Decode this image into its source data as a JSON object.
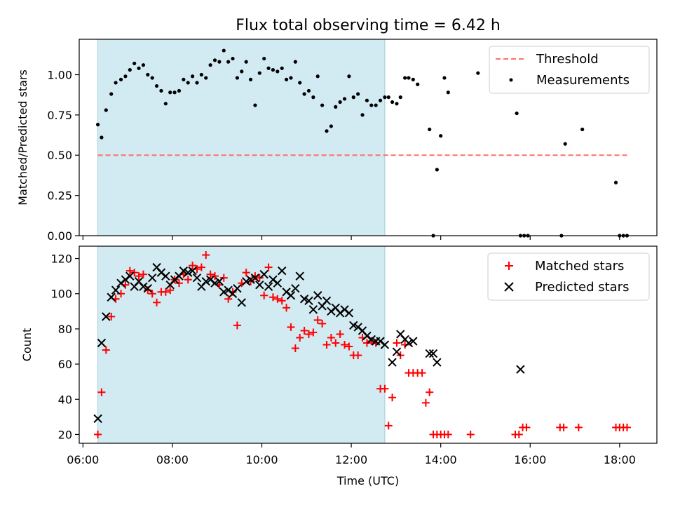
{
  "title": "Flux total observing time = 6.42 h",
  "colors": {
    "threshold": "#ff6f6f",
    "measurement": "#000000",
    "matched": "#ff0000",
    "predicted": "#000000",
    "shade": "#add8e6"
  },
  "chart_data": [
    {
      "type": "scatter",
      "ylabel": "Matched/Predicted stars",
      "ylim": [
        0,
        1.22
      ],
      "yticks": [
        0.0,
        0.25,
        0.5,
        0.75,
        1.0
      ],
      "ytick_labels": [
        "0.00",
        "0.25",
        "0.50",
        "0.75",
        "1.00"
      ],
      "xlim": [
        "05:55",
        "18:50"
      ],
      "xticks": [
        "06:00",
        "08:00",
        "10:00",
        "12:00",
        "14:00",
        "16:00",
        "18:00"
      ],
      "grid": false,
      "legend": "upper-right",
      "shaded_interval": [
        "06:20",
        "12:45"
      ],
      "threshold": {
        "name": "Threshold",
        "y": 0.5,
        "x_range": [
          "06:20",
          "18:10"
        ]
      },
      "series": [
        {
          "name": "Measurements",
          "x": [
            "06:20",
            "06:25",
            "06:31",
            "06:38",
            "06:44",
            "06:51",
            "06:57",
            "07:03",
            "07:09",
            "07:15",
            "07:21",
            "07:27",
            "07:33",
            "07:39",
            "07:45",
            "07:51",
            "07:57",
            "08:03",
            "08:09",
            "08:15",
            "08:21",
            "08:27",
            "08:33",
            "08:39",
            "08:45",
            "08:51",
            "08:57",
            "09:03",
            "09:09",
            "09:15",
            "09:21",
            "09:27",
            "09:33",
            "09:39",
            "09:45",
            "09:51",
            "09:57",
            "10:03",
            "10:09",
            "10:15",
            "10:21",
            "10:27",
            "10:33",
            "10:39",
            "10:45",
            "10:51",
            "10:57",
            "11:03",
            "11:09",
            "11:15",
            "11:21",
            "11:27",
            "11:33",
            "11:39",
            "11:45",
            "11:51",
            "11:57",
            "12:03",
            "12:09",
            "12:15",
            "12:21",
            "12:27",
            "12:33",
            "12:39",
            "12:45",
            "12:50",
            "12:55",
            "13:01",
            "13:06",
            "13:12",
            "13:17",
            "13:23",
            "13:29",
            "13:45",
            "13:50",
            "13:55",
            "14:00",
            "14:05",
            "14:10",
            "14:50",
            "15:42",
            "15:47",
            "15:52",
            "15:57",
            "16:42",
            "16:47",
            "17:10",
            "17:55",
            "18:00",
            "18:05",
            "18:10"
          ],
          "y": [
            0.69,
            0.61,
            0.78,
            0.88,
            0.95,
            0.97,
            0.99,
            1.03,
            1.07,
            1.04,
            1.06,
            1.0,
            0.98,
            0.93,
            0.9,
            0.82,
            0.89,
            0.89,
            0.9,
            0.97,
            0.95,
            0.99,
            0.95,
            1.0,
            0.98,
            1.06,
            1.09,
            1.08,
            1.15,
            1.08,
            1.1,
            0.98,
            1.02,
            1.08,
            0.97,
            0.81,
            1.01,
            1.1,
            1.04,
            1.03,
            1.02,
            1.04,
            0.97,
            0.98,
            1.08,
            0.95,
            0.88,
            0.9,
            0.86,
            0.99,
            0.81,
            0.65,
            0.68,
            0.8,
            0.83,
            0.85,
            0.99,
            0.86,
            0.88,
            0.75,
            0.84,
            0.81,
            0.81,
            0.84,
            0.86,
            0.86,
            0.83,
            0.82,
            0.86,
            0.98,
            0.98,
            0.97,
            0.94,
            0.66,
            0.0,
            0.41,
            0.62,
            0.98,
            0.89,
            1.01,
            0.76,
            0.0,
            0.0,
            0.0,
            0.0,
            0.57,
            0.66,
            0.33,
            0.0,
            0.0,
            0.0
          ]
        }
      ]
    },
    {
      "type": "scatter",
      "xlabel": "Time (UTC)",
      "ylabel": "Count",
      "ylim": [
        15,
        127
      ],
      "yticks": [
        20,
        40,
        60,
        80,
        100,
        120
      ],
      "ytick_labels": [
        "20",
        "40",
        "60",
        "80",
        "100",
        "120"
      ],
      "xlim": [
        "05:55",
        "18:50"
      ],
      "xticks": [
        "06:00",
        "08:00",
        "10:00",
        "12:00",
        "14:00",
        "16:00",
        "18:00"
      ],
      "xtick_labels": [
        "06:00",
        "08:00",
        "10:00",
        "12:00",
        "14:00",
        "16:00",
        "18:00"
      ],
      "grid": false,
      "legend": "upper-right",
      "shaded_interval": [
        "06:20",
        "12:45"
      ],
      "series": [
        {
          "name": "Matched stars",
          "marker": "plus",
          "x": [
            "06:20",
            "06:25",
            "06:31",
            "06:38",
            "06:44",
            "06:51",
            "06:57",
            "07:03",
            "07:09",
            "07:15",
            "07:21",
            "07:27",
            "07:33",
            "07:39",
            "07:45",
            "07:51",
            "07:57",
            "08:03",
            "08:09",
            "08:15",
            "08:21",
            "08:27",
            "08:33",
            "08:39",
            "08:45",
            "08:51",
            "08:57",
            "09:03",
            "09:09",
            "09:15",
            "09:21",
            "09:27",
            "09:33",
            "09:39",
            "09:45",
            "09:51",
            "09:57",
            "10:03",
            "10:09",
            "10:15",
            "10:21",
            "10:27",
            "10:33",
            "10:39",
            "10:45",
            "10:51",
            "10:57",
            "11:03",
            "11:09",
            "11:15",
            "11:21",
            "11:27",
            "11:33",
            "11:39",
            "11:45",
            "11:51",
            "11:57",
            "12:03",
            "12:09",
            "12:15",
            "12:21",
            "12:27",
            "12:33",
            "12:39",
            "12:45",
            "12:50",
            "12:55",
            "13:01",
            "13:06",
            "13:12",
            "13:17",
            "13:23",
            "13:29",
            "13:35",
            "13:40",
            "13:45",
            "13:50",
            "13:55",
            "14:00",
            "14:05",
            "14:10",
            "14:40",
            "15:40",
            "15:45",
            "15:50",
            "15:55",
            "16:40",
            "16:45",
            "17:05",
            "17:55",
            "18:00",
            "18:05",
            "18:10"
          ],
          "y": [
            20,
            44,
            68,
            87,
            97,
            100,
            105,
            113,
            112,
            110,
            111,
            102,
            100,
            95,
            101,
            101,
            102,
            108,
            106,
            111,
            108,
            116,
            114,
            115,
            122,
            111,
            110,
            105,
            109,
            97,
            101,
            82,
            106,
            112,
            107,
            110,
            109,
            99,
            115,
            98,
            97,
            96,
            92,
            81,
            69,
            75,
            79,
            77,
            78,
            85,
            83,
            71,
            75,
            72,
            77,
            71,
            70,
            65,
            65,
            75,
            72,
            73,
            72,
            46,
            46,
            25,
            41,
            72,
            65,
            71,
            55,
            55,
            55,
            55,
            38,
            44,
            20,
            20,
            20,
            20,
            20,
            20,
            20,
            20,
            24,
            24,
            24,
            24,
            24,
            24,
            24,
            24,
            24
          ]
        },
        {
          "name": "Predicted stars",
          "marker": "x",
          "x": [
            "06:20",
            "06:25",
            "06:31",
            "06:38",
            "06:44",
            "06:51",
            "06:57",
            "07:03",
            "07:09",
            "07:15",
            "07:21",
            "07:27",
            "07:33",
            "07:39",
            "07:45",
            "07:51",
            "07:57",
            "08:03",
            "08:09",
            "08:15",
            "08:21",
            "08:27",
            "08:33",
            "08:39",
            "08:45",
            "08:51",
            "08:57",
            "09:03",
            "09:09",
            "09:15",
            "09:21",
            "09:27",
            "09:33",
            "09:39",
            "09:45",
            "09:51",
            "09:57",
            "10:03",
            "10:09",
            "10:15",
            "10:21",
            "10:27",
            "10:33",
            "10:39",
            "10:45",
            "10:51",
            "10:57",
            "11:03",
            "11:09",
            "11:15",
            "11:21",
            "11:27",
            "11:33",
            "11:39",
            "11:45",
            "11:51",
            "11:57",
            "12:03",
            "12:09",
            "12:15",
            "12:21",
            "12:27",
            "12:33",
            "12:39",
            "12:45",
            "12:55",
            "13:01",
            "13:06",
            "13:12",
            "13:17",
            "13:23",
            "13:45",
            "13:50",
            "13:55",
            "15:47"
          ],
          "y": [
            29,
            72,
            87,
            98,
            102,
            106,
            108,
            110,
            104,
            107,
            104,
            103,
            109,
            115,
            112,
            110,
            105,
            108,
            110,
            113,
            112,
            113,
            109,
            104,
            107,
            108,
            106,
            107,
            101,
            102,
            100,
            103,
            95,
            107,
            108,
            109,
            105,
            111,
            104,
            108,
            106,
            113,
            101,
            99,
            103,
            110,
            97,
            96,
            91,
            99,
            93,
            96,
            90,
            92,
            89,
            91,
            89,
            82,
            81,
            79,
            76,
            74,
            73,
            73,
            71,
            61,
            67,
            77,
            74,
            72,
            73,
            66,
            66,
            61,
            57
          ]
        }
      ]
    }
  ]
}
